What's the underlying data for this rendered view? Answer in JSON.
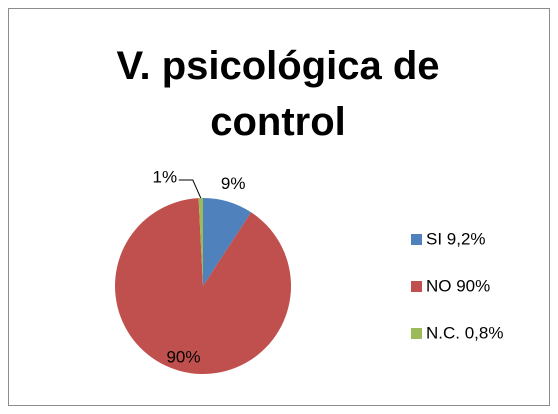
{
  "chart_data": {
    "type": "pie",
    "title": "V. psicológica de control",
    "categories": [
      "SI 9,2%",
      "NO 90%",
      "N.C. 0,8%"
    ],
    "values": [
      9.2,
      90,
      0.8
    ],
    "value_labels": [
      "9%",
      "90%",
      "1%"
    ],
    "colors": [
      "#4f81bd",
      "#c0504d",
      "#9bbb59"
    ],
    "legend": "right"
  }
}
